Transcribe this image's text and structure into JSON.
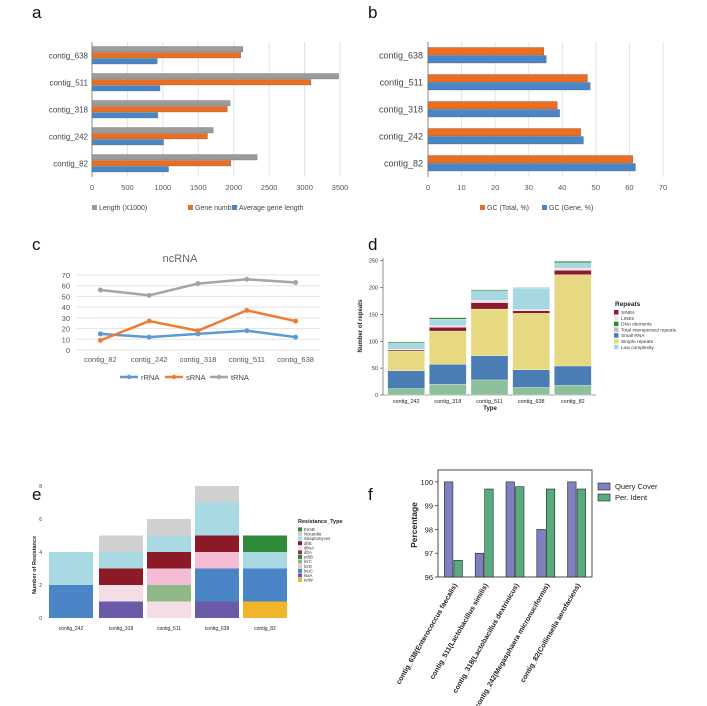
{
  "colors": {
    "grey": "#9b9b9b",
    "orange": "#ea6d21",
    "blue": "#4a86c5",
    "c_rRNA": "#5b9bd5",
    "c_sRNA": "#ed7d31",
    "c_tRNA": "#a5a5a5",
    "query": "#8080c0",
    "ident": "#5aaa80",
    "SINEs": "#8b1a2b",
    "LINEs": "#f1dfe4",
    "DNA_elements": "#2b8a3e",
    "Total_interspersed": "#bfbfbf",
    "Small_RNA": "#4a7db3",
    "Simple_repeats": "#e6d981",
    "Low_complexity": "#a7d8e2",
    "Low_complexity_base": "#8dbf9a",
    "res_palette": [
      "#2f8a39",
      "#d0d0d0",
      "#a9d9e3",
      "#8b1a26",
      "#f4dde5",
      "#8fb887",
      "#4a86c5",
      "#ffffff",
      "#e9d985",
      "#8a3a44",
      "#f4bdd6",
      "#6a5aa8",
      "#f0b52a"
    ]
  },
  "chart_data": [
    {
      "panel": "a",
      "type": "bar",
      "orientation": "horizontal",
      "categories": [
        "contig_638",
        "contig_511",
        "contig_318",
        "contig_242",
        "contig_82"
      ],
      "series": [
        {
          "name": "Length (X1000)",
          "values": [
            2130,
            3480,
            1950,
            1710,
            2330
          ]
        },
        {
          "name": "Gene number",
          "values": [
            2100,
            3090,
            1910,
            1630,
            1960
          ]
        },
        {
          "name": "Average gene length",
          "values": [
            920,
            960,
            930,
            1010,
            1080
          ]
        }
      ],
      "xlim": [
        0,
        3500
      ],
      "xticks": [
        "0",
        "500",
        "1000",
        "1500",
        "2000",
        "2500",
        "3000",
        "3500"
      ],
      "legend_position": "bottom"
    },
    {
      "panel": "b",
      "type": "bar",
      "orientation": "horizontal",
      "categories": [
        "contig_638",
        "contig_511",
        "contig_318",
        "contig_242",
        "contig_82"
      ],
      "series": [
        {
          "name": "GC (Total, %)",
          "values": [
            34.5,
            47.5,
            38.5,
            45.5,
            61
          ]
        },
        {
          "name": "GC (Gene, %)",
          "values": [
            35.2,
            48.3,
            39.2,
            46.3,
            61.8
          ]
        }
      ],
      "xlim": [
        0,
        70
      ],
      "xticks": [
        "0",
        "10",
        "20",
        "30",
        "40",
        "50",
        "60",
        "70"
      ],
      "legend_position": "bottom"
    },
    {
      "panel": "c",
      "type": "line",
      "title": "ncRNA",
      "categories": [
        "contig_82",
        "contig_242",
        "contig_318",
        "contig_511",
        "contig_638"
      ],
      "series": [
        {
          "name": "rRNA",
          "values": [
            15,
            12,
            15,
            18,
            12
          ]
        },
        {
          "name": "sRNA",
          "values": [
            9,
            27,
            18,
            37,
            27
          ]
        },
        {
          "name": "tRNA",
          "values": [
            56,
            51,
            62,
            66,
            63
          ]
        }
      ],
      "ylim": [
        0,
        70
      ],
      "yticks": [
        "0",
        "10",
        "20",
        "30",
        "40",
        "50",
        "60",
        "70"
      ],
      "legend_position": "bottom"
    },
    {
      "panel": "d",
      "type": "bar",
      "stacked": true,
      "categories": [
        "contig_242",
        "contig_318",
        "contig_511",
        "contig_638",
        "contig_82"
      ],
      "xlabel": "Type",
      "ylabel": "Number of repeats",
      "ylim": [
        0,
        255
      ],
      "yticks": [
        "0",
        "50",
        "100",
        "150",
        "200",
        "250"
      ],
      "legend_title": "Repeats",
      "series": [
        {
          "name": "Low complexity",
          "values": [
            12,
            20,
            28,
            14,
            18
          ]
        },
        {
          "name": "Small RNA",
          "values": [
            33,
            37,
            45,
            33,
            36
          ]
        },
        {
          "name": "Simple repeats",
          "values": [
            37,
            62,
            87,
            105,
            170
          ]
        },
        {
          "name": "SINEs",
          "values": [
            2,
            7,
            12,
            5,
            8
          ]
        },
        {
          "name": "LINEs",
          "values": [
            1,
            3,
            4,
            2,
            4
          ]
        },
        {
          "name": "Total interspersed repeats",
          "values": [
            12,
            12,
            18,
            40,
            10
          ]
        },
        {
          "name": "DNA elements",
          "values": [
            2,
            3,
            2,
            1,
            3
          ]
        }
      ],
      "legend": [
        "SINEs",
        "LINEs",
        "DNA elements",
        "Total interspersed repeats",
        "Small RNA",
        "Simple repeats",
        "Low complexity"
      ],
      "legend_position": "right"
    },
    {
      "panel": "e",
      "type": "bar",
      "stacked": true,
      "categories": [
        "contig_242",
        "contig_318",
        "contig_511",
        "contig_638",
        "contig_82"
      ],
      "ylabel": "Number of Resistance",
      "ylim": [
        0,
        8
      ],
      "yticks": [
        "0",
        "2",
        "4",
        "6",
        "8"
      ],
      "legend_title": "Resistance_Type",
      "legend": [
        "ErmB",
        "Nocardia",
        "Streptomyces",
        "dfrE",
        "dfrxA",
        "dfrA",
        "ethB",
        "lnrC",
        "lnrD",
        "lnuC",
        "lsaA",
        "tetW"
      ],
      "stacks": [
        [
          {
            "type": "lsaA",
            "value": 2
          },
          {
            "type": "Streptomyces",
            "value": 2
          }
        ],
        [
          {
            "type": "tetW",
            "value": 1
          },
          {
            "type": "dfrxA",
            "value": 1
          },
          {
            "type": "SINE",
            "value": 0
          },
          {
            "type": "dfrE",
            "value": 1
          },
          {
            "type": "Streptomyces",
            "value": 1
          },
          {
            "type": "Nocardia",
            "value": 1
          }
        ],
        [
          {
            "type": "dfrxA",
            "value": 1
          },
          {
            "type": "lnrC",
            "value": 1
          },
          {
            "type": "lnrD",
            "value": 1
          },
          {
            "type": "dfrE",
            "value": 1
          },
          {
            "type": "Streptomyces",
            "value": 1
          },
          {
            "type": "Nocardia",
            "value": 1
          }
        ],
        [
          {
            "type": "tetW",
            "value": 1
          },
          {
            "type": "lsaA",
            "value": 1
          },
          {
            "type": "lnuC",
            "value": 1
          },
          {
            "type": "lnrD",
            "value": 1
          },
          {
            "type": "dfrE",
            "value": 1
          },
          {
            "type": "Streptomyces",
            "value": 2
          },
          {
            "type": "Nocardia",
            "value": 1
          }
        ],
        [
          {
            "type": "teW",
            "value": 1
          },
          {
            "type": "lsaA",
            "value": 2
          },
          {
            "type": "Streptomyces",
            "value": 1
          },
          {
            "type": "ErmB",
            "value": 1
          }
        ]
      ],
      "legend_position": "right"
    },
    {
      "panel": "f",
      "type": "bar",
      "categories": [
        "contig_638(Enterococcus faecalis)",
        "contig_511(Lactobacillus similis)",
        "contig_318(Lactobacillus dextrinicus)",
        "contig_242(Megasphaera micronuciformis)",
        "contig_82(Collinsella aerofaciens)"
      ],
      "ylabel": "Percentage",
      "ylim": [
        96,
        100.5
      ],
      "yticks": [
        "96",
        "97",
        "98",
        "99",
        "100"
      ],
      "series": [
        {
          "name": "Query Cover",
          "values": [
            100,
            97,
            100,
            98,
            100
          ]
        },
        {
          "name": "Per. Ident",
          "values": [
            96.7,
            99.7,
            99.8,
            99.7,
            99.7
          ]
        }
      ],
      "legend_position": "right"
    }
  ],
  "panels": {
    "a": "a",
    "b": "b",
    "c": "c",
    "d": "d",
    "e": "e",
    "f": "f"
  }
}
